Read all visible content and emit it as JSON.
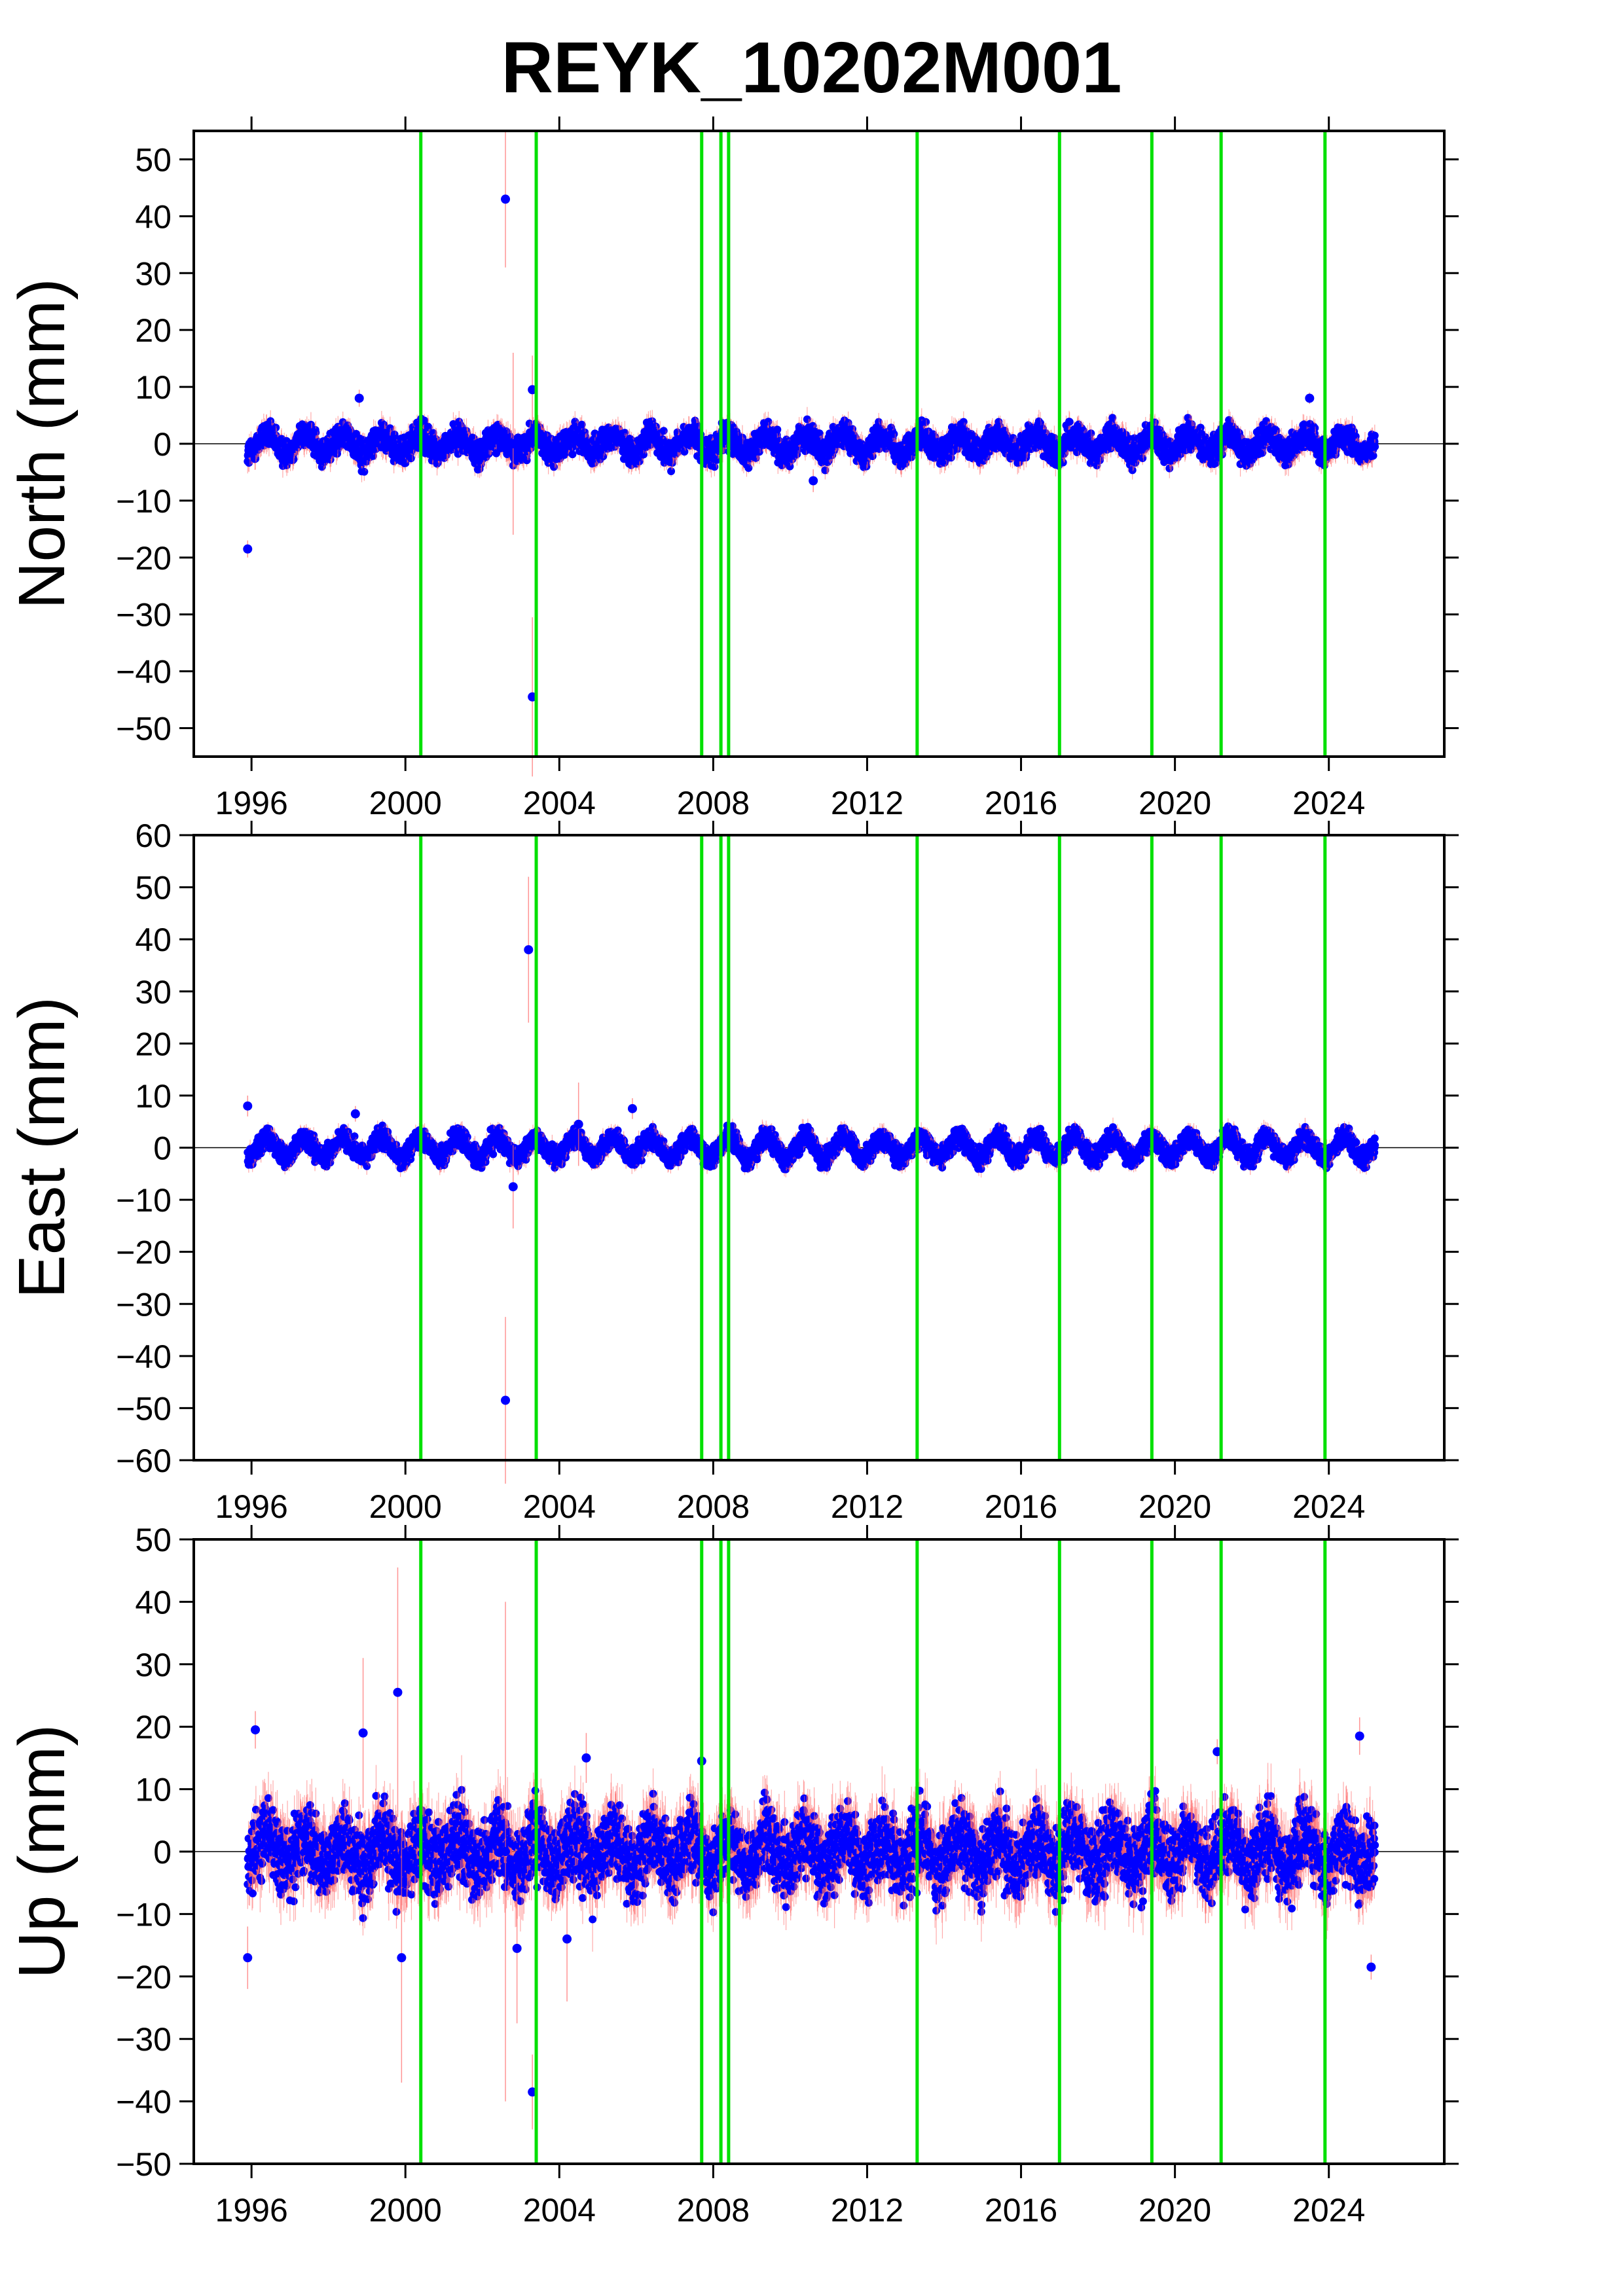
{
  "title": "REYK_10202M001",
  "colors": {
    "points": "#0000ff",
    "error_bars": "#ff6666",
    "event_lines": "#00e000",
    "zero_line": "#000000"
  },
  "chart_data": [
    {
      "type": "scatter",
      "component": "north",
      "ylabel": "North (mm)",
      "xlabel": "",
      "xlim": [
        1994.5,
        2027.0
      ],
      "ylim": [
        -55,
        55
      ],
      "xticks": [
        1996,
        2000,
        2004,
        2008,
        2012,
        2016,
        2020,
        2024
      ],
      "yticks": [
        -50,
        -40,
        -30,
        -20,
        -10,
        0,
        10,
        20,
        30,
        40,
        50
      ],
      "event_lines": [
        2000.4,
        2003.4,
        2007.7,
        2008.2,
        2008.4,
        2013.3,
        2017.0,
        2019.4,
        2021.2,
        2023.9
      ],
      "time_range": [
        1995.9,
        2025.2
      ],
      "band": {
        "center": 0,
        "amplitude": 1.6,
        "scatter": 1.6
      },
      "outliers": [
        {
          "x": 1995.9,
          "y": -18.5,
          "err": 1.5
        },
        {
          "x": 2002.6,
          "y": 43,
          "err": 12
        },
        {
          "x": 2003.3,
          "y": 9.5,
          "err": 6
        },
        {
          "x": 2003.3,
          "y": -44.5,
          "err": 14
        },
        {
          "x": 2002.8,
          "y": 0,
          "err": 16
        },
        {
          "x": 2010.6,
          "y": -6.5,
          "err": 2
        },
        {
          "x": 1998.8,
          "y": 8,
          "err": 1.5
        },
        {
          "x": 2023.5,
          "y": 8,
          "err": 1
        }
      ]
    },
    {
      "type": "scatter",
      "component": "east",
      "ylabel": "East (mm)",
      "xlabel": "",
      "xlim": [
        1994.5,
        2027.0
      ],
      "ylim": [
        -60,
        60
      ],
      "xticks": [
        1996,
        2000,
        2004,
        2008,
        2012,
        2016,
        2020,
        2024
      ],
      "yticks": [
        -60,
        -50,
        -40,
        -30,
        -20,
        -10,
        0,
        10,
        20,
        30,
        40,
        50,
        60
      ],
      "event_lines": [
        2000.4,
        2003.4,
        2007.7,
        2008.2,
        2008.4,
        2013.3,
        2017.0,
        2019.4,
        2021.2,
        2023.9
      ],
      "time_range": [
        1995.9,
        2025.2
      ],
      "band": {
        "center": 0,
        "amplitude": 2.0,
        "scatter": 1.3
      },
      "outliers": [
        {
          "x": 2003.2,
          "y": 38,
          "err": 14
        },
        {
          "x": 2002.6,
          "y": -48.5,
          "err": 16
        },
        {
          "x": 2002.8,
          "y": -7.5,
          "err": 8
        },
        {
          "x": 2005.9,
          "y": 7.5,
          "err": 2
        },
        {
          "x": 1998.7,
          "y": 6.5,
          "err": 1.5
        },
        {
          "x": 2004.5,
          "y": 4.5,
          "err": 8
        },
        {
          "x": 1995.9,
          "y": 8,
          "err": 2
        }
      ]
    },
    {
      "type": "scatter",
      "component": "up",
      "ylabel": "Up (mm)",
      "xlabel": "",
      "xlim": [
        1994.5,
        2027.0
      ],
      "ylim": [
        -50,
        50
      ],
      "xticks": [
        1996,
        2000,
        2004,
        2008,
        2012,
        2016,
        2020,
        2024
      ],
      "yticks": [
        -50,
        -40,
        -30,
        -20,
        -10,
        0,
        10,
        20,
        30,
        40,
        50
      ],
      "event_lines": [
        2000.4,
        2003.4,
        2007.7,
        2008.2,
        2008.4,
        2013.3,
        2017.0,
        2019.4,
        2021.2,
        2023.9
      ],
      "time_range": [
        1995.9,
        2025.2
      ],
      "band": {
        "center": 0,
        "amplitude": 2.5,
        "scatter": 4.0
      },
      "outliers": [
        {
          "x": 2003.3,
          "y": -38.5,
          "err": 6
        },
        {
          "x": 1999.8,
          "y": 25.5,
          "err": 20
        },
        {
          "x": 1996.1,
          "y": 19.5,
          "err": 3
        },
        {
          "x": 1998.9,
          "y": 19,
          "err": 12
        },
        {
          "x": 2002.6,
          "y": 0,
          "err": 40
        },
        {
          "x": 1999.9,
          "y": -17,
          "err": 20
        },
        {
          "x": 2004.7,
          "y": 15,
          "err": 4
        },
        {
          "x": 2007.7,
          "y": 14.5,
          "err": 2
        },
        {
          "x": 2021.1,
          "y": 16,
          "err": 2
        },
        {
          "x": 2024.8,
          "y": 18.5,
          "err": 3
        },
        {
          "x": 2025.1,
          "y": -18.5,
          "err": 2
        },
        {
          "x": 1995.9,
          "y": -17,
          "err": 5
        },
        {
          "x": 2004.2,
          "y": -14,
          "err": 10
        },
        {
          "x": 2002.9,
          "y": -15.5,
          "err": 12
        }
      ]
    }
  ]
}
